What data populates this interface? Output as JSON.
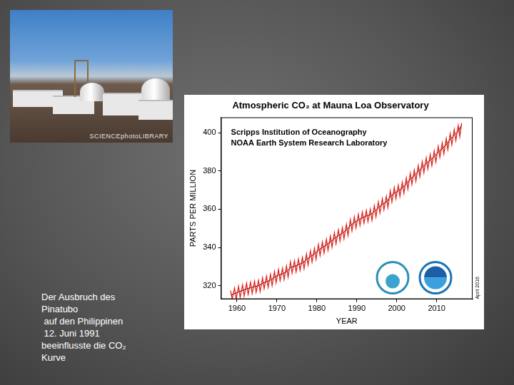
{
  "slide": {
    "photo_credit": "SCIENCEphotoLIBRARY",
    "caption": [
      "Der Ausbruch des",
      "Pinatubo",
      " auf den Philippinen",
      " 12. Juni 1991",
      "beeinflusste die CO₂",
      "Kurve"
    ]
  },
  "chart_data": {
    "type": "line",
    "title": "Atmospheric CO₂ at Mauna Loa Observatory",
    "annotations": [
      "Scripps Institution of Oceanography",
      "NOAA Earth System Research Laboratory"
    ],
    "date_stamp": "April 2016",
    "x_label": "YEAR",
    "y_label": "PARTS PER MILLION",
    "xlim": [
      1956,
      2019
    ],
    "xticks": [
      1960,
      1970,
      1980,
      1990,
      2000,
      2010
    ],
    "ylim": [
      313,
      408
    ],
    "yticks": [
      320,
      340,
      360,
      380,
      400
    ],
    "grid": false,
    "series": [
      {
        "color": "#e3201b",
        "marker": "none",
        "line_style": "solid",
        "x": [
          1958.4,
          1958.8,
          1959.4,
          1959.8,
          1960.4,
          1960.8,
          1961.4,
          1961.8,
          1962.4,
          1962.8,
          1963.4,
          1963.8,
          1964.4,
          1964.8,
          1965.4,
          1965.8,
          1966.4,
          1966.8,
          1967.4,
          1967.8,
          1968.4,
          1968.8,
          1969.4,
          1969.8,
          1970.4,
          1970.8,
          1971.4,
          1971.8,
          1972.4,
          1972.8,
          1973.4,
          1973.8,
          1974.4,
          1974.8,
          1975.4,
          1975.8,
          1976.4,
          1976.8,
          1977.4,
          1977.8,
          1978.4,
          1978.8,
          1979.4,
          1979.8,
          1980.4,
          1980.8,
          1981.4,
          1981.8,
          1982.4,
          1982.8,
          1983.4,
          1983.8,
          1984.4,
          1984.8,
          1985.4,
          1985.8,
          1986.4,
          1986.8,
          1987.4,
          1987.8,
          1988.4,
          1988.8,
          1989.4,
          1989.8,
          1990.4,
          1990.8,
          1991.4,
          1991.8,
          1992.4,
          1992.8,
          1993.4,
          1993.8,
          1994.4,
          1994.8,
          1995.4,
          1995.8,
          1996.4,
          1996.8,
          1997.4,
          1997.8,
          1998.4,
          1998.8,
          1999.4,
          1999.8,
          2000.4,
          2000.8,
          2001.4,
          2001.8,
          2002.4,
          2002.8,
          2003.4,
          2003.8,
          2004.4,
          2004.8,
          2005.4,
          2005.8,
          2006.4,
          2006.8,
          2007.4,
          2007.8,
          2008.4,
          2008.8,
          2009.4,
          2009.8,
          2010.4,
          2010.8,
          2011.4,
          2011.8,
          2012.4,
          2012.8,
          2013.4,
          2013.8,
          2014.4,
          2014.8,
          2015.4,
          2015.8,
          2016.25
        ],
        "values": [
          317.5,
          313.2,
          318.8,
          313.0,
          319.7,
          313.9,
          320.4,
          314.6,
          321.3,
          315.5,
          321.8,
          316.0,
          322.4,
          316.6,
          322.8,
          317.0,
          324.2,
          318.4,
          325.0,
          319.2,
          325.9,
          320.1,
          327.4,
          321.6,
          328.5,
          322.7,
          329.1,
          323.3,
          330.3,
          324.5,
          332.5,
          326.7,
          333.0,
          327.2,
          333.9,
          328.1,
          334.8,
          329.0,
          336.6,
          330.8,
          338.2,
          332.4,
          339.6,
          333.8,
          341.6,
          335.8,
          342.9,
          337.1,
          344.3,
          338.5,
          345.9,
          340.2,
          347.7,
          341.9,
          349.2,
          343.4,
          350.4,
          344.6,
          352.1,
          346.3,
          354.5,
          348.7,
          356.0,
          350.2,
          357.3,
          351.5,
          358.5,
          352.7,
          359.3,
          353.5,
          360.0,
          354.2,
          361.8,
          356.0,
          363.8,
          358.0,
          365.5,
          359.7,
          366.7,
          360.9,
          369.6,
          363.8,
          371.3,
          365.5,
          372.5,
          366.7,
          374.1,
          368.3,
          376.3,
          370.5,
          378.8,
          373.0,
          380.5,
          374.7,
          382.8,
          377.0,
          384.9,
          379.1,
          386.8,
          381.0,
          388.6,
          382.8,
          390.4,
          384.6,
          392.9,
          387.1,
          394.6,
          388.9,
          396.9,
          391.1,
          399.5,
          393.7,
          401.7,
          395.9,
          403.8,
          398.0,
          405.0
        ]
      },
      {
        "color": "#000000",
        "marker": "none",
        "line_style": "solid",
        "x": [
          1958.5,
          1959.5,
          1960.5,
          1961.5,
          1962.5,
          1963.5,
          1964.5,
          1965.5,
          1966.5,
          1967.5,
          1968.5,
          1969.5,
          1970.5,
          1971.5,
          1972.5,
          1973.5,
          1974.5,
          1975.5,
          1976.5,
          1977.5,
          1978.5,
          1979.5,
          1980.5,
          1981.5,
          1982.5,
          1983.5,
          1984.5,
          1985.5,
          1986.5,
          1987.5,
          1988.5,
          1989.5,
          1990.5,
          1991.5,
          1992.5,
          1993.5,
          1994.5,
          1995.5,
          1996.5,
          1997.5,
          1998.5,
          1999.5,
          2000.5,
          2001.5,
          2002.5,
          2003.5,
          2004.5,
          2005.5,
          2006.5,
          2007.5,
          2008.5,
          2009.5,
          2010.5,
          2011.5,
          2012.5,
          2013.5,
          2014.5,
          2015.5,
          2016.25
        ],
        "values": [
          315.3,
          315.97,
          316.91,
          317.64,
          318.45,
          318.99,
          319.62,
          320.04,
          321.37,
          322.18,
          323.05,
          324.62,
          325.68,
          326.32,
          327.46,
          329.68,
          330.19,
          331.12,
          332.03,
          333.84,
          335.41,
          336.84,
          338.76,
          340.12,
          341.48,
          343.15,
          344.85,
          346.35,
          347.61,
          349.31,
          351.69,
          353.2,
          354.45,
          355.7,
          356.54,
          357.21,
          358.96,
          360.97,
          362.74,
          363.88,
          366.84,
          368.54,
          369.71,
          371.32,
          373.45,
          375.98,
          377.7,
          379.98,
          382.09,
          384.02,
          385.83,
          387.64,
          390.1,
          391.85,
          394.06,
          396.74,
          398.87,
          401.01,
          404.0
        ]
      }
    ]
  }
}
